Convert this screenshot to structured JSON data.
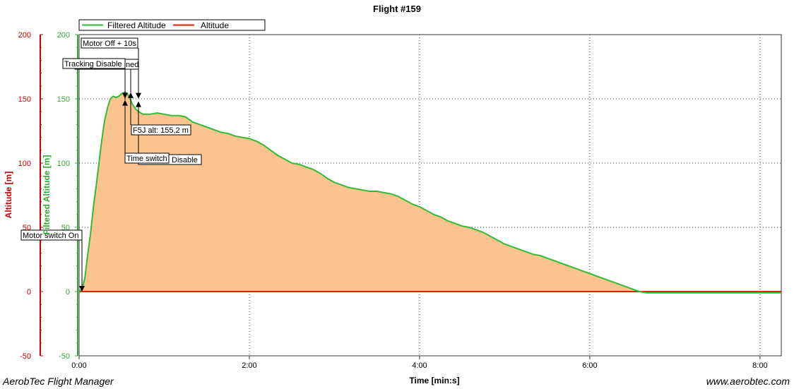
{
  "chart_data": {
    "type": "area",
    "title": "Flight #159",
    "xlabel": "Time [min:s]",
    "ylabel_left_outer": "Altitude [m]",
    "ylabel_left_inner": "Filtered Altitude [m]",
    "xlim": [
      0,
      495
    ],
    "ylim": [
      -50,
      200
    ],
    "x_ticks": [
      {
        "value": 0,
        "label": "0:00"
      },
      {
        "value": 120,
        "label": "2:00"
      },
      {
        "value": 240,
        "label": "4:00"
      },
      {
        "value": 360,
        "label": "6:00"
      },
      {
        "value": 480,
        "label": "8:00"
      }
    ],
    "y_ticks": [
      -50,
      0,
      50,
      100,
      150,
      200
    ],
    "grid": true,
    "legend": "top-left",
    "colors": {
      "filtered": "#33bb33",
      "altitude": "#dd2200",
      "fill": "#fbc48e",
      "left_axis": "#cc0000",
      "inner_axis": "#33aa33"
    },
    "series": [
      {
        "name": "Filtered Altitude",
        "x": [
          0,
          2,
          4,
          6,
          8,
          10,
          12,
          14,
          16,
          18,
          20,
          22,
          24,
          26,
          28,
          30,
          32,
          33,
          34,
          35,
          36,
          37,
          38,
          40,
          42,
          45,
          48,
          50,
          55,
          60,
          65,
          70,
          75,
          80,
          85,
          90,
          95,
          100,
          105,
          110,
          115,
          120,
          125,
          130,
          135,
          140,
          145,
          150,
          155,
          160,
          165,
          170,
          175,
          180,
          185,
          190,
          195,
          200,
          205,
          210,
          215,
          220,
          225,
          230,
          235,
          240,
          245,
          250,
          255,
          260,
          265,
          270,
          275,
          280,
          285,
          290,
          295,
          300,
          305,
          310,
          315,
          320,
          325,
          330,
          335,
          340,
          345,
          350,
          355,
          360,
          365,
          370,
          375,
          380,
          385,
          390,
          395,
          400,
          405,
          410,
          415,
          420,
          425,
          430,
          435,
          440,
          445,
          450,
          455,
          460,
          465,
          470,
          475,
          480,
          485,
          490,
          495
        ],
        "values": [
          0,
          2,
          10,
          28,
          45,
          65,
          82,
          100,
          118,
          133,
          143,
          150,
          152,
          151,
          152,
          154,
          155,
          155,
          154,
          152,
          150,
          147,
          145,
          142,
          140,
          138,
          138,
          138,
          139,
          138,
          137,
          137,
          136,
          132,
          130,
          128,
          126,
          124,
          123,
          121,
          120,
          119,
          117,
          114,
          110,
          106,
          103,
          100,
          99,
          97,
          95,
          92,
          88,
          85,
          83,
          81,
          80,
          79,
          78,
          78,
          77,
          76,
          74,
          71,
          68,
          66,
          63,
          60,
          58,
          55,
          53,
          51,
          50,
          48,
          46,
          43,
          40,
          37,
          35,
          33,
          31,
          29,
          28,
          26,
          24,
          22,
          20,
          18,
          16,
          14,
          12,
          10,
          8,
          6,
          4,
          2,
          0,
          -1,
          -1,
          -1,
          -1,
          -1,
          -1,
          -1,
          -1,
          -1,
          -1,
          -1,
          -1,
          -1,
          -1,
          -1,
          -1,
          -1,
          -1,
          -1,
          -1
        ]
      },
      {
        "name": "Altitude",
        "x": [
          0,
          495
        ],
        "values": [
          0,
          0
        ]
      }
    ],
    "annotations": [
      {
        "label": "Motor switch On",
        "x": 2,
        "y": 0
      },
      {
        "label": "Tracking Disable",
        "x": 32,
        "y": 148
      },
      {
        "label": "Time switch",
        "x": 32,
        "y": 148
      },
      {
        "label": "Motor Off + 10s",
        "x": 42,
        "y": 148
      },
      {
        "label": "F5J alt: 155,2 m",
        "x": 36,
        "y": 155
      },
      {
        "label": "ned",
        "x": 36,
        "y": 155
      },
      {
        "label": "Disable",
        "x": 42,
        "y": 148
      }
    ]
  },
  "footer": {
    "left": "AerobTec Flight Manager",
    "right": "www.aerobtec.com"
  }
}
